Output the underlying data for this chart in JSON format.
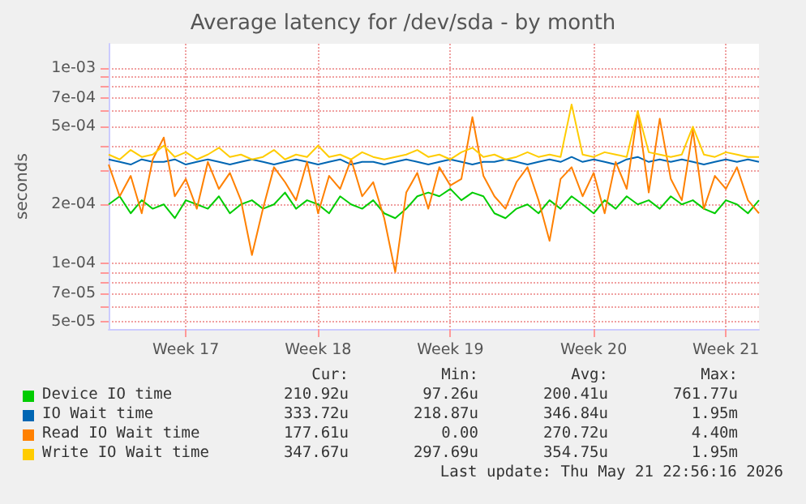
{
  "chart_data": {
    "type": "line",
    "title": "Average latency for /dev/sda - by month",
    "ylabel": "seconds",
    "log": "y",
    "grid": true,
    "legend": "bottom",
    "marker": "none",
    "line_style": "solid",
    "categories": [
      null,
      null,
      null,
      null,
      null,
      null,
      null,
      "Week 17",
      null,
      null,
      null,
      null,
      null,
      null,
      null,
      null,
      null,
      null,
      null,
      "Week 18",
      null,
      null,
      null,
      null,
      null,
      null,
      null,
      null,
      null,
      null,
      null,
      "Week 19",
      null,
      null,
      null,
      null,
      null,
      null,
      null,
      null,
      null,
      null,
      null,
      null,
      "Week 20",
      null,
      null,
      null,
      null,
      null,
      null,
      null,
      null,
      null,
      null,
      null,
      "Week 21",
      null,
      null,
      null
    ],
    "ylim": [
      4.6e-05,
      0.00133
    ],
    "yticks": [
      {
        "value": 5e-05,
        "label": "5e-05"
      },
      {
        "value": 6e-05,
        "label": null
      },
      {
        "value": 7e-05,
        "label": "7e-05"
      },
      {
        "value": 8e-05,
        "label": null
      },
      {
        "value": 9e-05,
        "label": null
      },
      {
        "value": 0.0001,
        "label": "1e-04"
      },
      {
        "value": 0.0002,
        "label": "2e-04"
      },
      {
        "value": 0.0003,
        "label": null
      },
      {
        "value": 0.0004,
        "label": null
      },
      {
        "value": 0.0005,
        "label": "5e-04"
      },
      {
        "value": 0.0006,
        "label": null
      },
      {
        "value": 0.0007,
        "label": "7e-04"
      },
      {
        "value": 0.0008,
        "label": null
      },
      {
        "value": 0.0009,
        "label": null
      },
      {
        "value": 0.001,
        "label": "1e-03"
      }
    ],
    "series": [
      {
        "name": "Device IO time",
        "color": "#00cc00",
        "values": [
          0.0002,
          0.00022,
          0.00018,
          0.00021,
          0.00019,
          0.0002,
          0.00017,
          0.00021,
          0.0002,
          0.00019,
          0.00022,
          0.00018,
          0.0002,
          0.00021,
          0.00019,
          0.0002,
          0.00023,
          0.00019,
          0.00021,
          0.0002,
          0.00018,
          0.00022,
          0.0002,
          0.00019,
          0.00021,
          0.00018,
          0.00017,
          0.00019,
          0.00022,
          0.00023,
          0.00022,
          0.00024,
          0.00021,
          0.00023,
          0.00022,
          0.00018,
          0.00017,
          0.00019,
          0.0002,
          0.00018,
          0.00021,
          0.00019,
          0.00022,
          0.0002,
          0.00018,
          0.00021,
          0.00019,
          0.00022,
          0.0002,
          0.00021,
          0.00019,
          0.00022,
          0.0002,
          0.00021,
          0.00019,
          0.00018,
          0.00021,
          0.0002,
          0.00018,
          0.00021
        ]
      },
      {
        "name": "IO Wait time",
        "color": "#0066b3",
        "values": [
          0.00034,
          0.00033,
          0.00032,
          0.00034,
          0.00033,
          0.00033,
          0.00034,
          0.00032,
          0.00033,
          0.00034,
          0.00033,
          0.00032,
          0.00033,
          0.00034,
          0.00033,
          0.00032,
          0.00033,
          0.00034,
          0.00033,
          0.00032,
          0.00033,
          0.00034,
          0.00032,
          0.00033,
          0.00033,
          0.00032,
          0.00033,
          0.00034,
          0.00033,
          0.00032,
          0.00033,
          0.00034,
          0.00033,
          0.00032,
          0.00033,
          0.00033,
          0.00034,
          0.00033,
          0.00032,
          0.00033,
          0.00034,
          0.00033,
          0.00035,
          0.00033,
          0.00034,
          0.00033,
          0.00032,
          0.00034,
          0.00035,
          0.00033,
          0.00034,
          0.00033,
          0.00034,
          0.00033,
          0.00032,
          0.00033,
          0.00034,
          0.00033,
          0.00034,
          0.00033
        ]
      },
      {
        "name": "Read IO Wait time",
        "color": "#ff8000",
        "values": [
          0.00032,
          0.00022,
          0.00028,
          0.00018,
          0.00034,
          0.00044,
          0.00022,
          0.00027,
          0.00019,
          0.00033,
          0.00024,
          0.00029,
          0.00021,
          0.00011,
          0.00019,
          0.00031,
          0.00026,
          0.00021,
          0.00033,
          0.00018,
          0.00028,
          0.00024,
          0.00034,
          0.00022,
          0.00026,
          0.00017,
          9e-05,
          0.00023,
          0.00029,
          0.00019,
          0.00031,
          0.00025,
          0.00027,
          0.00056,
          0.00028,
          0.00022,
          0.00019,
          0.00026,
          0.00031,
          0.00021,
          0.00013,
          0.00027,
          0.00031,
          0.00022,
          0.00029,
          0.00018,
          0.00033,
          0.00024,
          0.0006,
          0.00023,
          0.00055,
          0.00027,
          0.00021,
          0.00048,
          0.00019,
          0.00028,
          0.00024,
          0.00031,
          0.00021,
          0.00018
        ]
      },
      {
        "name": "Write IO Wait time",
        "color": "#ffcc00",
        "values": [
          0.00036,
          0.00034,
          0.00038,
          0.00035,
          0.00036,
          0.0004,
          0.00035,
          0.00037,
          0.00034,
          0.00036,
          0.00039,
          0.00035,
          0.00036,
          0.00034,
          0.00035,
          0.00038,
          0.00034,
          0.00036,
          0.00035,
          0.0004,
          0.00035,
          0.00036,
          0.00034,
          0.00037,
          0.00035,
          0.00034,
          0.00035,
          0.00036,
          0.00038,
          0.00035,
          0.00036,
          0.00034,
          0.00037,
          0.00039,
          0.00035,
          0.00036,
          0.00034,
          0.00035,
          0.00037,
          0.00035,
          0.00036,
          0.00035,
          0.00065,
          0.00036,
          0.00035,
          0.00037,
          0.00036,
          0.00035,
          0.0006,
          0.00037,
          0.00036,
          0.00035,
          0.00036,
          0.0005,
          0.00036,
          0.00035,
          0.00037,
          0.00036,
          0.00035,
          0.00035
        ]
      }
    ],
    "annotations": [
      "Cur:",
      "Min:",
      "Avg:",
      "Max:",
      "210.92u",
      "97.26u",
      "200.41u",
      "761.77u",
      "333.72u",
      "218.87u",
      "346.84u",
      "1.95m",
      "177.61u",
      "0.00",
      "270.72u",
      "4.40m",
      "347.67u",
      "297.69u",
      "354.75u",
      "1.95m",
      "Last update: Thu May 21 22:56:16 2026"
    ]
  }
}
